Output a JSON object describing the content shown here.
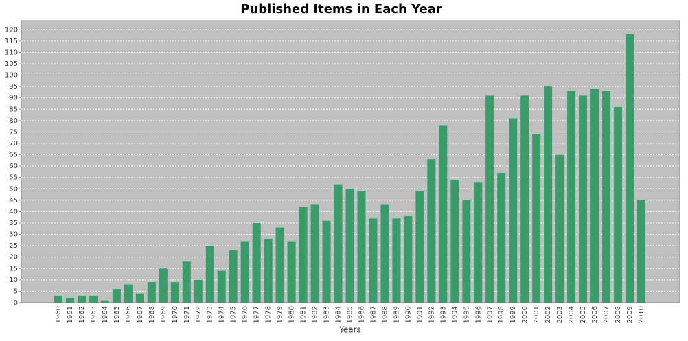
{
  "chart_data": {
    "type": "bar",
    "title": "Published Items in Each Year",
    "x_label": "Years",
    "categories": [
      "1960",
      "1961",
      "1962",
      "1963",
      "1964",
      "1965",
      "1966",
      "1967",
      "1968",
      "1969",
      "1970",
      "1971",
      "1972",
      "1973",
      "1974",
      "1975",
      "1976",
      "1977",
      "1978",
      "1979",
      "1980",
      "1981",
      "1982",
      "1983",
      "1984",
      "1985",
      "1986",
      "1987",
      "1988",
      "1989",
      "1990",
      "1991",
      "1992",
      "1993",
      "1994",
      "1995",
      "1996",
      "1997",
      "1998",
      "1999",
      "2000",
      "2001",
      "2002",
      "2003",
      "2004",
      "2005",
      "2006",
      "2007",
      "2008",
      "2009",
      "2010"
    ],
    "values": [
      3,
      2,
      3,
      3,
      1,
      6,
      8,
      4,
      9,
      15,
      9,
      18,
      10,
      25,
      14,
      23,
      27,
      35,
      28,
      33,
      27,
      42,
      43,
      36,
      52,
      50,
      49,
      37,
      43,
      37,
      38,
      49,
      63,
      78,
      54,
      45,
      53,
      91,
      57,
      81,
      91,
      74,
      95,
      65,
      93,
      91,
      94,
      93,
      86,
      118,
      45
    ],
    "color": "#3a9b6b",
    "ylim": [
      0,
      124
    ],
    "yticks": [
      0,
      5,
      10,
      15,
      20,
      25,
      30,
      35,
      40,
      45,
      50,
      55,
      60,
      65,
      70,
      75,
      80,
      85,
      90,
      95,
      100,
      105,
      110,
      115,
      120
    ],
    "grid": true
  }
}
